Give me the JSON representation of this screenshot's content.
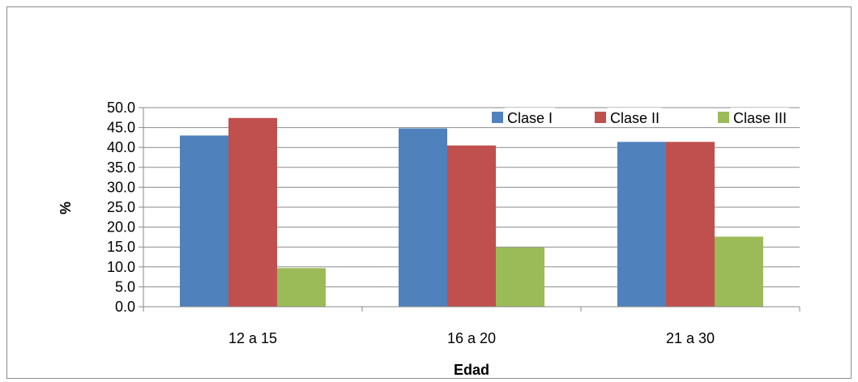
{
  "chart_data": {
    "type": "bar",
    "title": "",
    "xlabel": "Edad",
    "ylabel": "%",
    "categories": [
      "12 a 15",
      "16 a 20",
      "21 a 30"
    ],
    "ylim": [
      0,
      50
    ],
    "ytick_step": 5,
    "ytick_labels": [
      "0.0",
      "5.0",
      "10.0",
      "15.0",
      "20.0",
      "25.0",
      "30.0",
      "35.0",
      "40.0",
      "45.0",
      "50.0"
    ],
    "grid": true,
    "legend_position": "top-right",
    "series": [
      {
        "name": "Clase I",
        "color": "#4F81BD",
        "values": [
          43.0,
          44.8,
          41.4
        ]
      },
      {
        "name": "Clase II",
        "color": "#C0504D",
        "values": [
          47.4,
          40.5,
          41.4
        ]
      },
      {
        "name": "Clase III",
        "color": "#9BBB59",
        "values": [
          9.7,
          14.9,
          17.6
        ]
      }
    ]
  }
}
